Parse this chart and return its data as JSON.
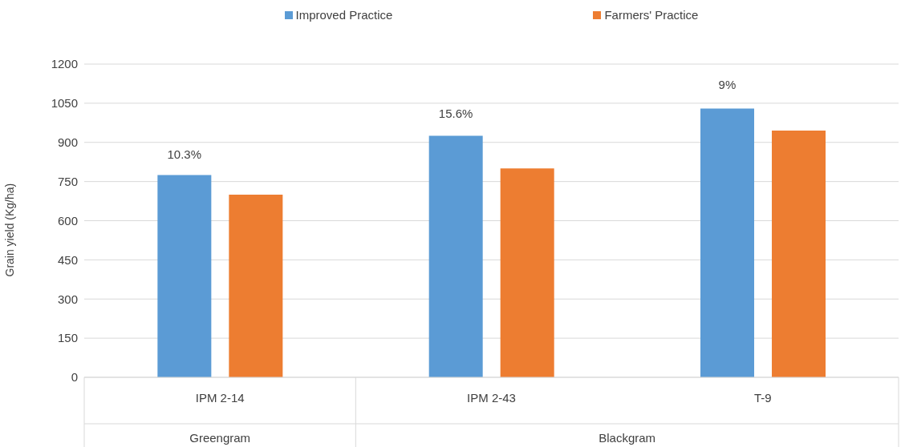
{
  "chart_data": {
    "type": "bar",
    "ylabel": "Grain yield (Kg/ha)",
    "categories": [
      "IPM 2-14",
      "IPM 2-43",
      "T-9"
    ],
    "series": [
      {
        "name": "Improved Practice",
        "color": "#5b9bd5",
        "values": [
          775,
          925,
          1030
        ]
      },
      {
        "name": "Farmers' Practice",
        "color": "#ed7d31",
        "values": [
          700,
          800,
          945
        ]
      }
    ],
    "annotations": [
      "Greengram",
      "Blackgram",
      "10.3%",
      "15.6%",
      "9%"
    ],
    "ylim": [
      0,
      1200
    ],
    "yticks": [
      0,
      150,
      300,
      450,
      600,
      750,
      900,
      1050,
      1200
    ],
    "grid": "y",
    "legend": "top"
  }
}
